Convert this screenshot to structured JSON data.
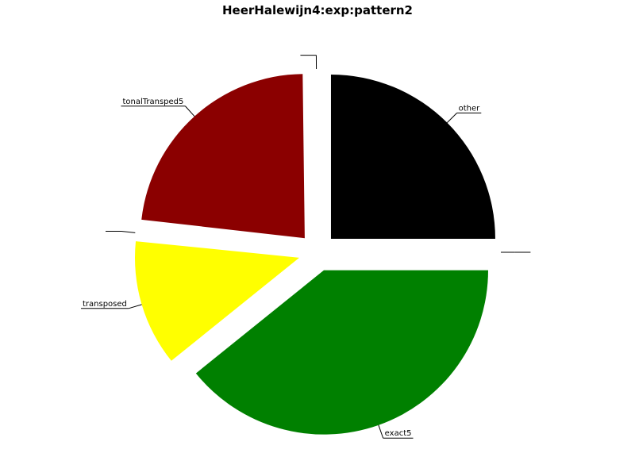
{
  "chart_data": {
    "type": "pie",
    "title": "HeerHalewijn4:exp:pattern2",
    "slices": [
      {
        "label": "other",
        "value": 25.0,
        "color": "#000000"
      },
      {
        "label": "",
        "value": 0.2,
        "color": "#ffffff"
      },
      {
        "label": "tonalTransped5",
        "value": 23.0,
        "color": "#8b0000"
      },
      {
        "label": "",
        "value": 0.2,
        "color": "#ffffff"
      },
      {
        "label": "transposed",
        "value": 12.4,
        "color": "#ffff00"
      },
      {
        "label": "exact5",
        "value": 39.2,
        "color": "#008000"
      },
      {
        "label": "",
        "value": 0.0,
        "color": "#ffffff"
      }
    ],
    "legend": "none",
    "grid": false
  }
}
